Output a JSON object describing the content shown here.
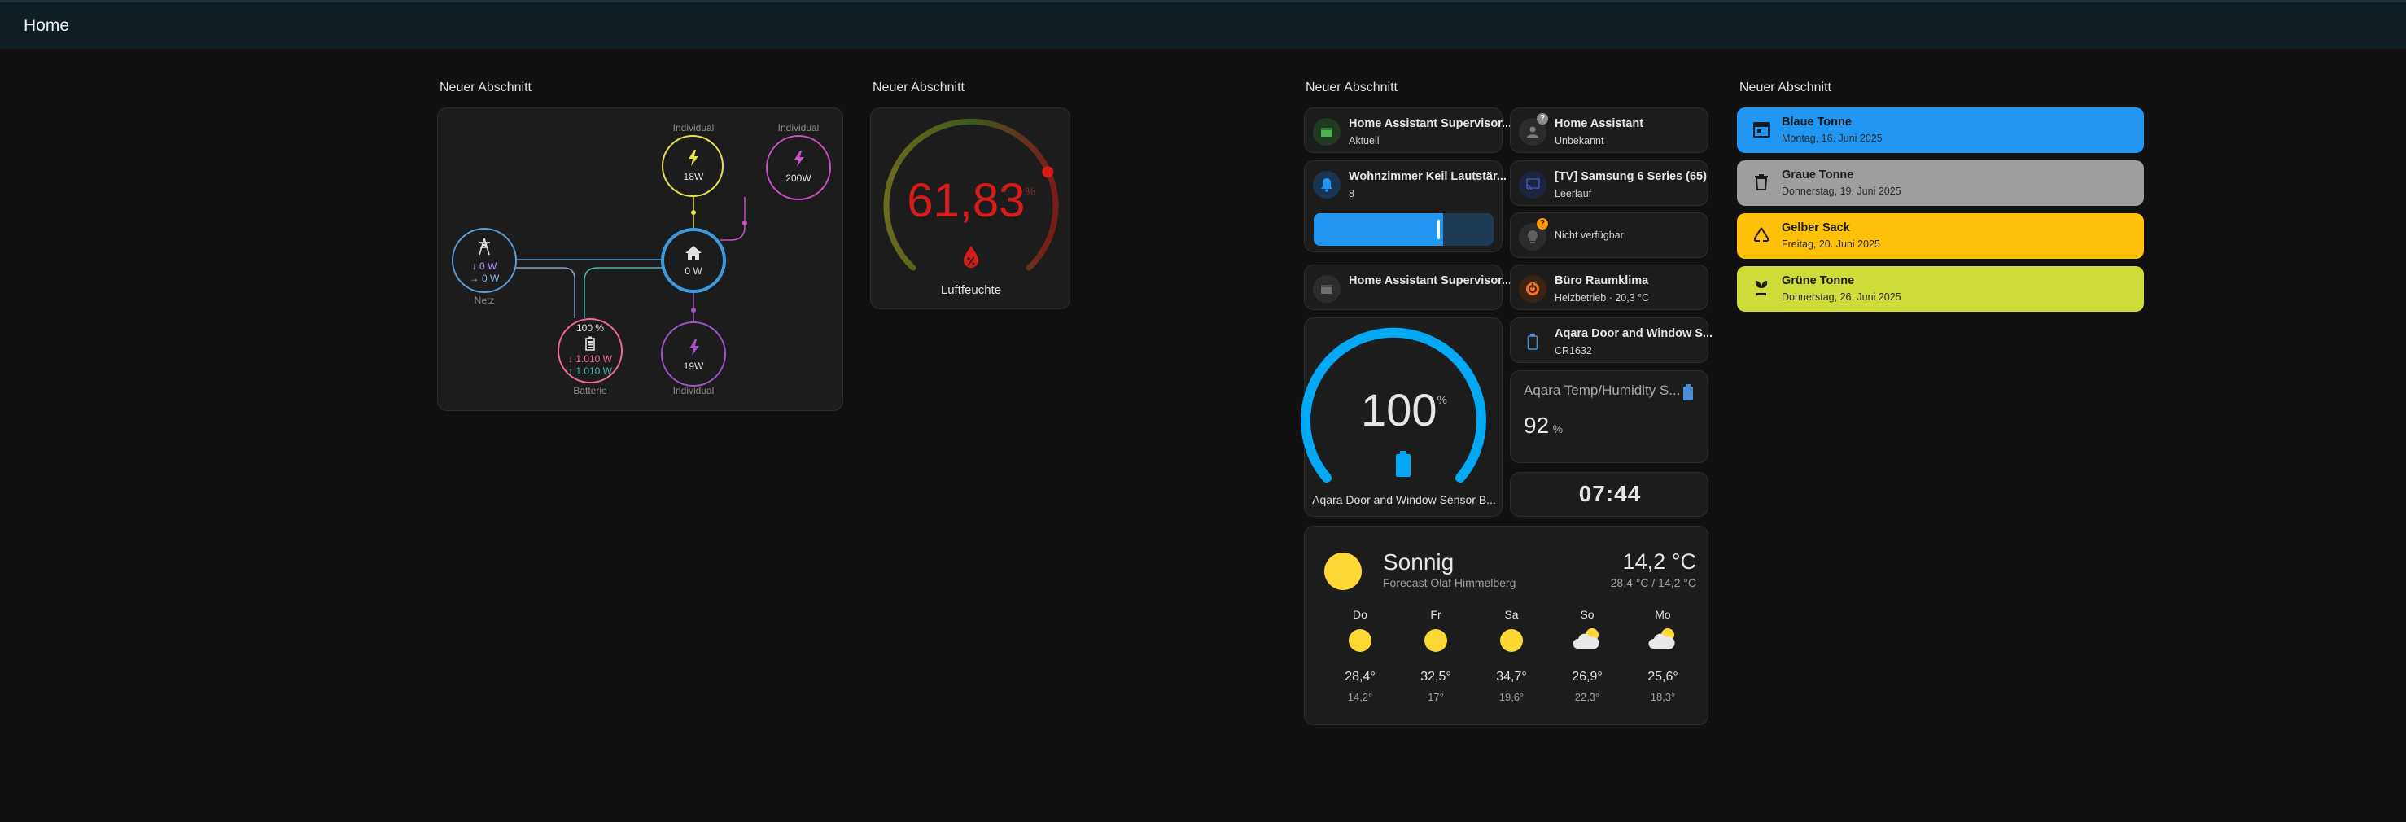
{
  "header": {
    "title": "Home"
  },
  "sections": {
    "s1": "Neuer Abschnitt",
    "s2": "Neuer Abschnitt",
    "s3": "Neuer Abschnitt",
    "s4": "Neuer Abschnitt"
  },
  "energy": {
    "solar": {
      "label": "Individual",
      "value": "18W",
      "color": "#e6e04c"
    },
    "individual_top": {
      "label": "Individual",
      "value": "200W",
      "color": "#c651c2"
    },
    "home": {
      "value": "0 W",
      "color": "#3c9ae0"
    },
    "grid": {
      "label": "Netz",
      "in": "0 W",
      "out": "0 W",
      "in_arrow": "↓",
      "out_arrow": "→",
      "color": "#5b9bd5"
    },
    "battery": {
      "label": "Batterie",
      "percent": "100 %",
      "in": "1.010 W",
      "out": "1.010 W",
      "in_arrow": "↓",
      "out_arrow": "↑",
      "color": "#f06b95"
    },
    "individual_bottom": {
      "label": "Individual",
      "value": "19W",
      "color": "#a155c7"
    }
  },
  "humidity_gauge": {
    "value": "61,83",
    "unit": "%",
    "name": "Luftfeuchte",
    "value_color": "#d71a1a"
  },
  "tiles": {
    "supervisor1": {
      "name": "Home Assistant Supervisor...",
      "state": "Aktuell"
    },
    "ha_person": {
      "name": "Home Assistant",
      "state": "Unbekannt"
    },
    "keil": {
      "name": "Wohnzimmer Keil Lautstär...",
      "state": "8"
    },
    "samsung": {
      "name": "[TV] Samsung 6 Series (65)",
      "state": "Leerlauf"
    },
    "light": {
      "state": "Nicht verfügbar"
    },
    "supervisor2": {
      "name": "Home Assistant Supervisor...",
      "state": ""
    },
    "klima": {
      "name": "Büro Raumklima",
      "state": "Heizbetrieb · 20,3 °C"
    },
    "aqara_door": {
      "name": "Aqara Door and Window S...",
      "state": "CR1632"
    }
  },
  "volume_slider": {
    "level_fraction": 0.72
  },
  "battery_gauge": {
    "value": "100",
    "unit": "%",
    "name": "Aqara Door and Window Sensor B...",
    "level_fraction": 1.0
  },
  "temp_sensor": {
    "name": "Aqara Temp/Humidity S...",
    "value": "92",
    "unit": "%"
  },
  "clock": {
    "time": "07:44"
  },
  "weather": {
    "condition": "Sonnig",
    "source": "Forecast Olaf Himmelberg",
    "temp": "14,2 °C",
    "range": "28,4 °C / 14,2 °C",
    "forecast": [
      {
        "day": "Do",
        "icon": "sun-icon",
        "high": "28,4°",
        "low": "14,2°"
      },
      {
        "day": "Fr",
        "icon": "sun-icon",
        "high": "32,5°",
        "low": "17°"
      },
      {
        "day": "Sa",
        "icon": "sun-icon",
        "high": "34,7°",
        "low": "19,6°"
      },
      {
        "day": "So",
        "icon": "partly-cloudy-icon",
        "high": "26,9°",
        "low": "22,3°"
      },
      {
        "day": "Mo",
        "icon": "partly-cloudy-icon",
        "high": "25,6°",
        "low": "18,3°"
      }
    ]
  },
  "trash": [
    {
      "name": "Blaue Tonne",
      "date": "Montag, 16. Juni 2025",
      "color": "#2196f3",
      "icon": "calendar-icon"
    },
    {
      "name": "Graue Tonne",
      "date": "Donnerstag, 19. Juni 2025",
      "color": "#9e9e9e",
      "icon": "trash-can-icon"
    },
    {
      "name": "Gelber Sack",
      "date": "Freitag, 20. Juni 2025",
      "color": "#ffc107",
      "icon": "recycle-icon"
    },
    {
      "name": "Grüne Tonne",
      "date": "Donnerstag, 26. Juni 2025",
      "color": "#cddc39",
      "icon": "leaf-icon"
    }
  ],
  "colors": {
    "accent_blue": "#03a9f4",
    "background": "#111111",
    "card": "#1c1c1c"
  }
}
